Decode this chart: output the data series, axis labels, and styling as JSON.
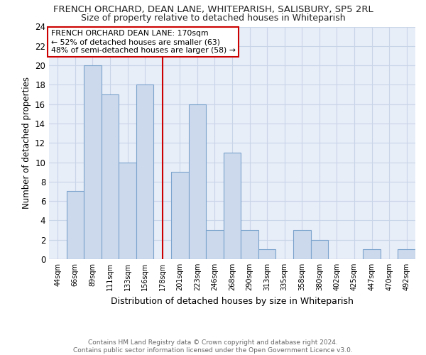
{
  "title": "FRENCH ORCHARD, DEAN LANE, WHITEPARISH, SALISBURY, SP5 2RL",
  "subtitle": "Size of property relative to detached houses in Whiteparish",
  "xlabel": "Distribution of detached houses by size in Whiteparish",
  "ylabel": "Number of detached properties",
  "categories": [
    "44sqm",
    "66sqm",
    "89sqm",
    "111sqm",
    "133sqm",
    "156sqm",
    "178sqm",
    "201sqm",
    "223sqm",
    "246sqm",
    "268sqm",
    "290sqm",
    "313sqm",
    "335sqm",
    "358sqm",
    "380sqm",
    "402sqm",
    "425sqm",
    "447sqm",
    "470sqm",
    "492sqm"
  ],
  "values": [
    0,
    7,
    20,
    17,
    10,
    18,
    0,
    9,
    16,
    3,
    11,
    3,
    1,
    0,
    3,
    2,
    0,
    0,
    1,
    0,
    1
  ],
  "bar_color": "#ccd9ed",
  "bar_edge_color": "#7ba3cc",
  "vline_x": 6,
  "vline_color": "#cc0000",
  "annotation_text": "FRENCH ORCHARD DEAN LANE: 170sqm\n← 52% of detached houses are smaller (63)\n48% of semi-detached houses are larger (58) →",
  "annotation_box_color": "#ffffff",
  "annotation_box_edge": "#cc0000",
  "ylim": [
    0,
    24
  ],
  "yticks": [
    0,
    2,
    4,
    6,
    8,
    10,
    12,
    14,
    16,
    18,
    20,
    22,
    24
  ],
  "footer_text": "Contains HM Land Registry data © Crown copyright and database right 2024.\nContains public sector information licensed under the Open Government Licence v3.0.",
  "grid_color": "#c8d4e8",
  "bg_color": "#e8eef8"
}
